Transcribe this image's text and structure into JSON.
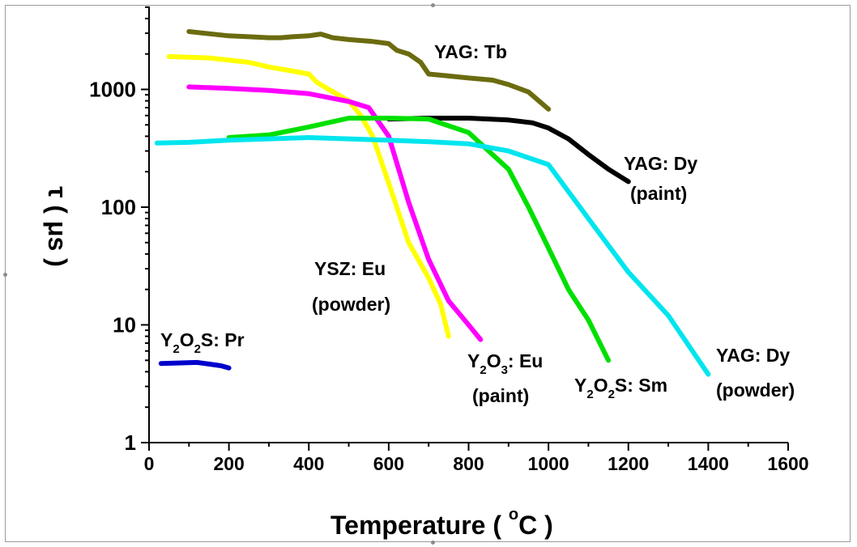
{
  "chart_data": {
    "type": "line",
    "xlabel": "Temperature ( °C )",
    "xlabel_parts": {
      "main": "Temperature ( ",
      "superscript": "o",
      "unit": "C )"
    },
    "ylabel": "τ ( μs )",
    "xlim": [
      0,
      1600
    ],
    "ylim": [
      1,
      5000
    ],
    "yscale": "log",
    "x_ticks": [
      "0",
      "200",
      "400",
      "600",
      "800",
      "1000",
      "1200",
      "1400",
      "1600"
    ],
    "y_ticks": [
      "1",
      "10",
      "100",
      "1000"
    ],
    "grid": false,
    "series": [
      {
        "name": "YAG: Tb",
        "color": "#6b6b10",
        "x": [
          100,
          200,
          250,
          300,
          330,
          360,
          400,
          430,
          460,
          500,
          560,
          600,
          620,
          650,
          680,
          700,
          750,
          800,
          860,
          900,
          950,
          1000
        ],
        "y": [
          3100,
          2850,
          2800,
          2750,
          2750,
          2800,
          2850,
          2950,
          2750,
          2650,
          2550,
          2450,
          2150,
          2000,
          1700,
          1350,
          1300,
          1250,
          1200,
          1100,
          950,
          680
        ]
      },
      {
        "name": "YAG: Dy (paint)",
        "color": "#000000",
        "x": [
          600,
          700,
          800,
          900,
          960,
          1000,
          1050,
          1100,
          1150,
          1200
        ],
        "y": [
          560,
          570,
          570,
          550,
          520,
          470,
          380,
          280,
          210,
          165
        ]
      },
      {
        "name": "YSZ: Eu (powder)",
        "color": "#ffff00",
        "x": [
          50,
          150,
          250,
          300,
          350,
          400,
          420,
          450,
          500,
          530,
          560,
          600,
          650,
          700,
          730,
          750
        ],
        "y": [
          1900,
          1850,
          1700,
          1550,
          1450,
          1350,
          1150,
          1000,
          800,
          600,
          400,
          160,
          50,
          25,
          15,
          8
        ]
      },
      {
        "name": "Y₂O₃: Eu (paint)",
        "color": "#ff00ff",
        "x": [
          100,
          200,
          300,
          400,
          500,
          550,
          600,
          650,
          700,
          750,
          800,
          830
        ],
        "y": [
          1050,
          1020,
          980,
          920,
          790,
          700,
          400,
          110,
          36,
          16,
          10,
          7.5
        ]
      },
      {
        "name": "Y₂O₂S: Sm",
        "color": "#00e000",
        "x": [
          200,
          300,
          400,
          500,
          600,
          700,
          800,
          850,
          900,
          950,
          1000,
          1050,
          1100,
          1150
        ],
        "y": [
          390,
          410,
          480,
          570,
          570,
          560,
          430,
          300,
          210,
          100,
          45,
          20,
          11,
          5
        ]
      },
      {
        "name": "YAG: Dy (powder)",
        "color": "#00e5ee",
        "x": [
          20,
          100,
          200,
          300,
          400,
          500,
          600,
          700,
          800,
          900,
          1000,
          1100,
          1200,
          1300,
          1400
        ],
        "y": [
          350,
          355,
          370,
          380,
          390,
          380,
          370,
          360,
          345,
          300,
          230,
          80,
          28,
          12,
          3.8
        ]
      },
      {
        "name": "Y₂O₂S: Pr",
        "color": "#0000cc",
        "x": [
          30,
          80,
          120,
          150,
          180,
          200
        ],
        "y": [
          4.7,
          4.75,
          4.8,
          4.65,
          4.5,
          4.3
        ]
      }
    ],
    "labels": [
      {
        "id": "yag-tb",
        "text": "YAG: Tb"
      },
      {
        "id": "yag-dy-paint-1",
        "text": "YAG: Dy"
      },
      {
        "id": "yag-dy-paint-2",
        "text": "(paint)"
      },
      {
        "id": "ysz-eu-1",
        "text": "YSZ: Eu"
      },
      {
        "id": "ysz-eu-2",
        "text": "(powder)"
      },
      {
        "id": "y2o3-eu-2",
        "text": "(paint)"
      },
      {
        "id": "yag-dy-powder-1",
        "text": "YAG: Dy"
      },
      {
        "id": "yag-dy-powder-2",
        "text": "(powder)"
      }
    ],
    "subscript_labels": {
      "y2o2s_pr": {
        "parts": [
          "Y",
          "2",
          "O",
          "2",
          "S: Pr"
        ]
      },
      "y2o3_eu": {
        "parts": [
          "Y",
          "2",
          "O",
          "3",
          ": Eu"
        ]
      },
      "y2o2s_sm": {
        "parts": [
          "Y",
          "2",
          "O",
          "2",
          "S: Sm"
        ]
      }
    }
  }
}
